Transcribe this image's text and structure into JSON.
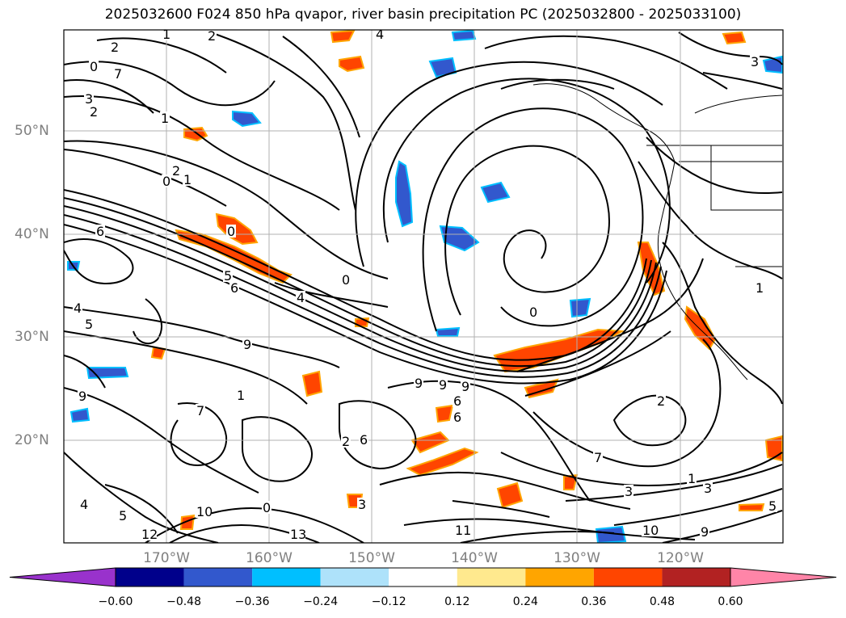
{
  "title": "2025032600 F024 850 hPa qvapor, river basin precipitation PC (2025032800 - 2025033100)",
  "lat_labels": [
    "50°N",
    "40°N",
    "30°N",
    "20°N"
  ],
  "lon_labels": [
    "170°W",
    "160°W",
    "150°W",
    "140°W",
    "130°W",
    "120°W"
  ],
  "colorbar": {
    "ticks": [
      "−0.60",
      "−0.48",
      "−0.36",
      "−0.24",
      "−0.12",
      "0.12",
      "0.24",
      "0.36",
      "0.48",
      "0.60"
    ],
    "colors": [
      "#9932CC",
      "#00008B",
      "#3258CD",
      "#00BFFF",
      "#AEE2FA",
      "#FFFFFF",
      "#FFE98E",
      "#FFA500",
      "#FF4500",
      "#B22222",
      "#FF85A8"
    ]
  },
  "contour_labels": [
    "2",
    "0",
    "7",
    "3",
    "2",
    "1",
    "2",
    "0",
    "1",
    "6",
    "0",
    "5",
    "6",
    "4",
    "0",
    "4",
    "5",
    "9",
    "9",
    "9",
    "9",
    "6",
    "1",
    "9",
    "7",
    "6",
    "2",
    "3",
    "6",
    "0",
    "4",
    "5",
    "13",
    "12",
    "10",
    "11",
    "10",
    "7",
    "9",
    "2",
    "1",
    "3",
    "5",
    "3",
    "1",
    "2",
    "4",
    "1",
    "0",
    "3"
  ]
}
